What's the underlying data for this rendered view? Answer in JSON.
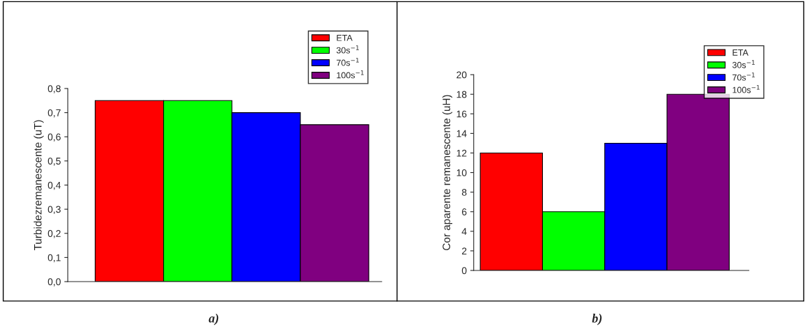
{
  "chart_data": [
    {
      "type": "bar",
      "ylabel": "Turbidezremanescente (uT)",
      "categories": [
        null
      ],
      "series": [
        {
          "name": "ETA",
          "color": "#ff0000",
          "values": [
            0.75
          ]
        },
        {
          "name": "30s$^{−1}$",
          "color": "#00ff00",
          "values": [
            0.75
          ]
        },
        {
          "name": "70s$^{−1}$",
          "color": "#0000ff",
          "values": [
            0.7
          ]
        },
        {
          "name": "100s$^{−1}$",
          "color": "#800080",
          "values": [
            0.65
          ]
        }
      ],
      "ylim": [
        0,
        0.8
      ],
      "yticks": [
        {
          "value": 0,
          "label": "0,0"
        },
        {
          "value": 0.1,
          "label": "0,1"
        },
        {
          "value": 0.2,
          "label": "0,2"
        },
        {
          "value": 0.3,
          "label": "0,3"
        },
        {
          "value": 0.4,
          "label": "0,4"
        },
        {
          "value": 0.5,
          "label": "0,5"
        },
        {
          "value": 0.6,
          "label": "0,6"
        },
        {
          "value": 0.7,
          "label": "0,7"
        },
        {
          "value": 0.8,
          "label": "0,8"
        }
      ],
      "grid": false,
      "legend": "top right",
      "annotations": [
        "a)"
      ]
    },
    {
      "type": "bar",
      "ylabel": "Cor aparente remanescente (uH)",
      "categories": [
        null
      ],
      "series": [
        {
          "name": "ETA",
          "color": "#ff0000",
          "values": [
            12
          ]
        },
        {
          "name": "30s$^{−1}$",
          "color": "#00ff00",
          "values": [
            6
          ]
        },
        {
          "name": "70s$^{−1}$",
          "color": "#0000ff",
          "values": [
            13
          ]
        },
        {
          "name": "100s$^{−1}$",
          "color": "#800080",
          "values": [
            18
          ]
        }
      ],
      "ylim": [
        0,
        20
      ],
      "yticks": [
        0,
        2,
        4,
        6,
        8,
        10,
        12,
        14,
        16,
        18,
        20
      ],
      "grid": false,
      "legend": "top right",
      "annotations": [
        "b)"
      ]
    }
  ]
}
